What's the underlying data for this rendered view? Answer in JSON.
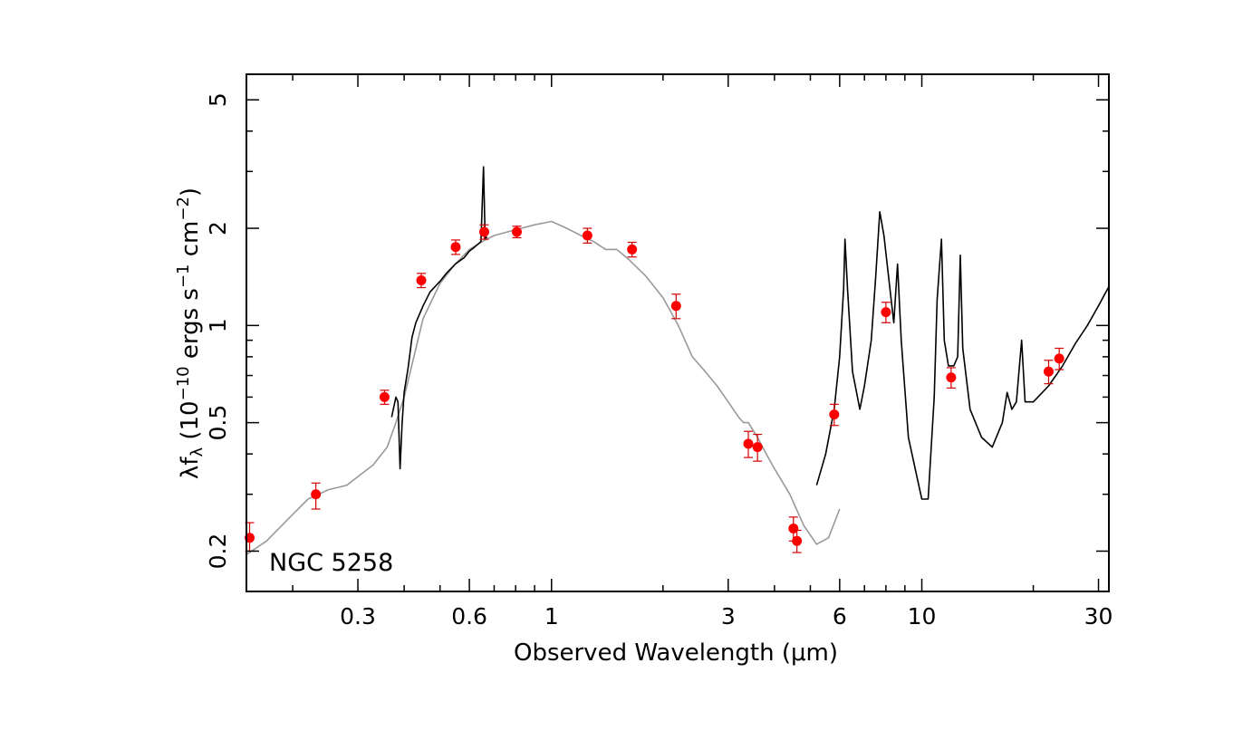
{
  "chart_data": {
    "type": "scatter",
    "title": "",
    "annotation": "NGC 5258",
    "xlabel": "Observed Wavelength (μm)",
    "ylabel": {
      "base": "λf",
      "sub": "λ",
      "open": " (10",
      "exp1": "−10",
      "mid": " ergs s",
      "exp2": "−1",
      "mid2": " cm",
      "exp3": "−2",
      "close": ")"
    },
    "x_scale": "log",
    "y_scale": "log",
    "xlim": [
      0.15,
      32
    ],
    "ylim": [
      0.15,
      6
    ],
    "x_ticks": [
      {
        "value": 0.3,
        "label": "0.3"
      },
      {
        "value": 0.6,
        "label": "0.6"
      },
      {
        "value": 1,
        "label": "1"
      },
      {
        "value": 3,
        "label": "3"
      },
      {
        "value": 6,
        "label": "6"
      },
      {
        "value": 10,
        "label": "10"
      },
      {
        "value": 30,
        "label": "30"
      }
    ],
    "y_ticks": [
      {
        "value": 0.2,
        "label": "0.2"
      },
      {
        "value": 0.5,
        "label": "0.5"
      },
      {
        "value": 1,
        "label": "1"
      },
      {
        "value": 2,
        "label": "2"
      },
      {
        "value": 5,
        "label": "5"
      }
    ],
    "grid": false,
    "colors": {
      "model": "#999999",
      "observed": "#000000",
      "photometry": "#ff0000",
      "errorbar": "#d40000"
    },
    "series": [
      {
        "kind": "model-line",
        "points": [
          [
            0.15,
            0.195
          ],
          [
            0.17,
            0.215
          ],
          [
            0.2,
            0.26
          ],
          [
            0.22,
            0.29
          ],
          [
            0.25,
            0.31
          ],
          [
            0.28,
            0.32
          ],
          [
            0.3,
            0.34
          ],
          [
            0.33,
            0.37
          ],
          [
            0.36,
            0.42
          ],
          [
            0.38,
            0.5
          ],
          [
            0.4,
            0.6
          ],
          [
            0.45,
            1.05
          ],
          [
            0.5,
            1.35
          ],
          [
            0.55,
            1.55
          ],
          [
            0.6,
            1.72
          ],
          [
            0.65,
            1.82
          ],
          [
            0.7,
            1.9
          ],
          [
            0.8,
            1.98
          ],
          [
            0.9,
            2.05
          ],
          [
            1.0,
            2.1
          ],
          [
            1.1,
            2.0
          ],
          [
            1.2,
            1.9
          ],
          [
            1.3,
            1.82
          ],
          [
            1.4,
            1.72
          ],
          [
            1.5,
            1.72
          ],
          [
            1.6,
            1.62
          ],
          [
            1.8,
            1.42
          ],
          [
            2.0,
            1.22
          ],
          [
            2.2,
            1.0
          ],
          [
            2.4,
            0.8
          ],
          [
            2.6,
            0.72
          ],
          [
            2.8,
            0.65
          ],
          [
            3.0,
            0.58
          ],
          [
            3.2,
            0.52
          ],
          [
            3.3,
            0.5
          ],
          [
            3.4,
            0.5
          ],
          [
            3.6,
            0.45
          ],
          [
            3.8,
            0.4
          ],
          [
            4.0,
            0.36
          ],
          [
            4.4,
            0.3
          ],
          [
            4.8,
            0.24
          ],
          [
            5.2,
            0.21
          ],
          [
            5.6,
            0.22
          ],
          [
            6.0,
            0.27
          ]
        ]
      },
      {
        "kind": "optical-spectrum",
        "points": [
          [
            0.37,
            0.52
          ],
          [
            0.38,
            0.6
          ],
          [
            0.385,
            0.58
          ],
          [
            0.39,
            0.36
          ],
          [
            0.395,
            0.5
          ],
          [
            0.4,
            0.62
          ],
          [
            0.41,
            0.74
          ],
          [
            0.42,
            0.92
          ],
          [
            0.43,
            1.02
          ],
          [
            0.45,
            1.15
          ],
          [
            0.47,
            1.27
          ],
          [
            0.5,
            1.37
          ],
          [
            0.52,
            1.45
          ],
          [
            0.55,
            1.55
          ],
          [
            0.58,
            1.62
          ],
          [
            0.6,
            1.7
          ],
          [
            0.62,
            1.75
          ],
          [
            0.645,
            1.82
          ],
          [
            0.655,
            3.1
          ],
          [
            0.662,
            1.86
          ],
          [
            0.67,
            1.88
          ]
        ]
      },
      {
        "kind": "mid-ir-spectrum",
        "points": [
          [
            5.2,
            0.32
          ],
          [
            5.5,
            0.4
          ],
          [
            5.8,
            0.55
          ],
          [
            6.0,
            0.8
          ],
          [
            6.15,
            1.3
          ],
          [
            6.2,
            1.85
          ],
          [
            6.3,
            1.3
          ],
          [
            6.5,
            0.72
          ],
          [
            6.8,
            0.55
          ],
          [
            7.0,
            0.65
          ],
          [
            7.3,
            0.9
          ],
          [
            7.5,
            1.4
          ],
          [
            7.7,
            2.25
          ],
          [
            7.9,
            1.9
          ],
          [
            8.2,
            1.3
          ],
          [
            8.4,
            1.02
          ],
          [
            8.6,
            1.55
          ],
          [
            8.8,
            0.9
          ],
          [
            9.2,
            0.45
          ],
          [
            9.7,
            0.34
          ],
          [
            10.0,
            0.29
          ],
          [
            10.4,
            0.29
          ],
          [
            10.8,
            0.6
          ],
          [
            11.0,
            1.2
          ],
          [
            11.3,
            1.85
          ],
          [
            11.5,
            0.9
          ],
          [
            11.8,
            0.75
          ],
          [
            12.2,
            0.75
          ],
          [
            12.5,
            0.8
          ],
          [
            12.7,
            1.65
          ],
          [
            12.9,
            0.85
          ],
          [
            13.5,
            0.55
          ],
          [
            14.5,
            0.45
          ],
          [
            15.5,
            0.42
          ],
          [
            16.5,
            0.5
          ],
          [
            17.0,
            0.62
          ],
          [
            17.5,
            0.55
          ],
          [
            18.0,
            0.58
          ],
          [
            18.6,
            0.9
          ],
          [
            19.0,
            0.58
          ],
          [
            20.0,
            0.58
          ],
          [
            22.0,
            0.65
          ],
          [
            24.0,
            0.75
          ],
          [
            26.0,
            0.88
          ],
          [
            28.0,
            1.0
          ],
          [
            30.0,
            1.15
          ],
          [
            32.0,
            1.32
          ]
        ]
      },
      {
        "kind": "photometry",
        "points": [
          {
            "x": 0.153,
            "y": 0.22,
            "lo": 0.2,
            "hi": 0.245
          },
          {
            "x": 0.231,
            "y": 0.3,
            "lo": 0.27,
            "hi": 0.325
          },
          {
            "x": 0.354,
            "y": 0.6,
            "lo": 0.57,
            "hi": 0.63
          },
          {
            "x": 0.445,
            "y": 1.38,
            "lo": 1.31,
            "hi": 1.45
          },
          {
            "x": 0.551,
            "y": 1.75,
            "lo": 1.66,
            "hi": 1.84
          },
          {
            "x": 0.658,
            "y": 1.95,
            "lo": 1.85,
            "hi": 2.05
          },
          {
            "x": 0.806,
            "y": 1.95,
            "lo": 1.87,
            "hi": 2.03
          },
          {
            "x": 1.25,
            "y": 1.9,
            "lo": 1.8,
            "hi": 2.0
          },
          {
            "x": 1.65,
            "y": 1.72,
            "lo": 1.63,
            "hi": 1.81
          },
          {
            "x": 2.17,
            "y": 1.15,
            "lo": 1.05,
            "hi": 1.25
          },
          {
            "x": 3.4,
            "y": 0.43,
            "lo": 0.39,
            "hi": 0.47
          },
          {
            "x": 3.6,
            "y": 0.42,
            "lo": 0.38,
            "hi": 0.46
          },
          {
            "x": 4.5,
            "y": 0.235,
            "lo": 0.215,
            "hi": 0.255
          },
          {
            "x": 4.6,
            "y": 0.215,
            "lo": 0.198,
            "hi": 0.232
          },
          {
            "x": 5.8,
            "y": 0.53,
            "lo": 0.49,
            "hi": 0.57
          },
          {
            "x": 8.0,
            "y": 1.1,
            "lo": 1.02,
            "hi": 1.18
          },
          {
            "x": 12.0,
            "y": 0.69,
            "lo": 0.64,
            "hi": 0.74
          },
          {
            "x": 22.0,
            "y": 0.72,
            "lo": 0.66,
            "hi": 0.78
          },
          {
            "x": 23.5,
            "y": 0.79,
            "lo": 0.73,
            "hi": 0.85
          }
        ]
      }
    ]
  }
}
